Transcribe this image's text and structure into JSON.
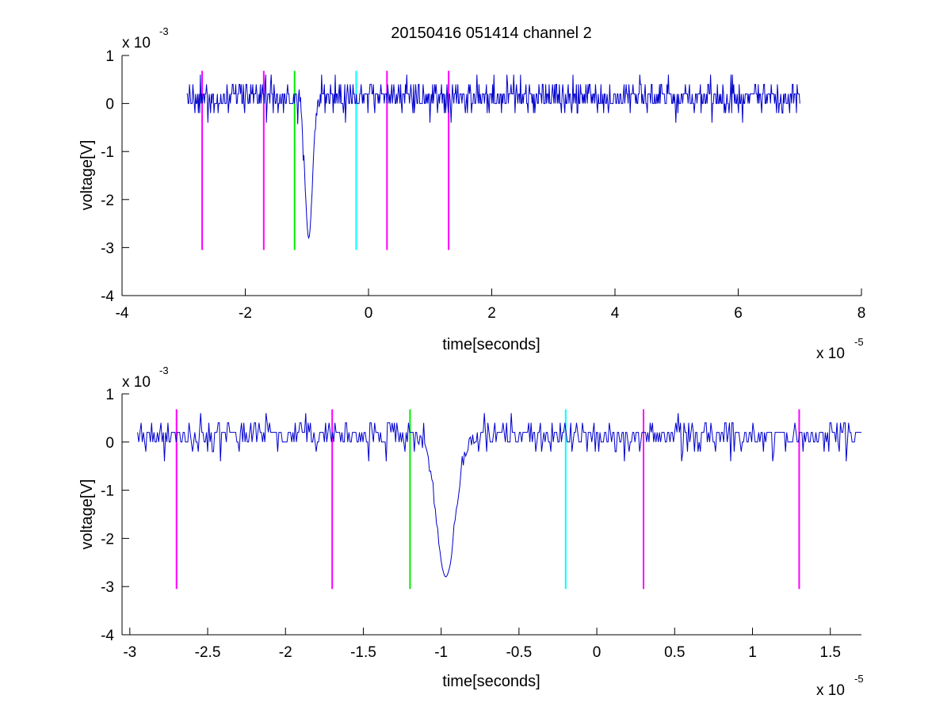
{
  "chart_data": [
    {
      "type": "line",
      "title": "20150416 051414 channel 2",
      "xlabel": "time[seconds]",
      "ylabel": "voltage[V]",
      "x_multiplier": {
        "base": "x 10",
        "power": "-5"
      },
      "y_multiplier": {
        "base": "x 10",
        "power": "-3"
      },
      "xlim": [
        -4,
        8
      ],
      "ylim": [
        -4,
        1
      ],
      "x_ticks": [
        -4,
        -2,
        0,
        2,
        4,
        6,
        8
      ],
      "x_tick_labels": [
        "-4",
        "-2",
        "0",
        "2",
        "4",
        "6",
        "8"
      ],
      "y_ticks": [
        1,
        0,
        -1,
        -2,
        -3,
        -4
      ],
      "y_tick_labels": [
        "1",
        "0",
        "-1",
        "-2",
        "-3",
        "-4"
      ],
      "grid": false,
      "signal": {
        "color": "#0000cc",
        "x_range": [
          -2.95,
          7.0
        ],
        "baseline": 0.08,
        "spike": {
          "x": -0.97,
          "min": -2.8
        }
      },
      "markers": [
        {
          "x": -2.7,
          "color": "#ff00ff",
          "top": 0.68,
          "bottom": -3.05
        },
        {
          "x": -1.7,
          "color": "#ff00ff",
          "top": 0.68,
          "bottom": -3.05
        },
        {
          "x": -1.2,
          "color": "#00ee00",
          "top": 0.68,
          "bottom": -3.05
        },
        {
          "x": -0.2,
          "color": "#00ffff",
          "top": 0.68,
          "bottom": -3.05
        },
        {
          "x": 0.3,
          "color": "#ff00ff",
          "top": 0.68,
          "bottom": -3.05
        },
        {
          "x": 1.3,
          "color": "#ff00ff",
          "top": 0.68,
          "bottom": -3.05
        }
      ]
    },
    {
      "type": "line",
      "title": "",
      "xlabel": "time[seconds]",
      "ylabel": "voltage[V]",
      "x_multiplier": {
        "base": "x 10",
        "power": "-5"
      },
      "y_multiplier": {
        "base": "x 10",
        "power": "-3"
      },
      "xlim": [
        -3.05,
        1.7
      ],
      "ylim": [
        -4,
        1
      ],
      "x_ticks": [
        -3,
        -2.5,
        -2,
        -1.5,
        -1,
        -0.5,
        0,
        0.5,
        1,
        1.5
      ],
      "x_tick_labels": [
        "-3",
        "-2.5",
        "-2",
        "-1.5",
        "-1",
        "-0.5",
        "0",
        "0.5",
        "1",
        "1.5"
      ],
      "y_ticks": [
        1,
        0,
        -1,
        -2,
        -3,
        -4
      ],
      "y_tick_labels": [
        "1",
        "0",
        "-1",
        "-2",
        "-3",
        "-4"
      ],
      "grid": false,
      "signal": {
        "color": "#0000cc",
        "x_range": [
          -2.95,
          1.7
        ],
        "baseline": 0.08,
        "spike": {
          "x": -0.97,
          "min": -2.8
        }
      },
      "markers": [
        {
          "x": -2.7,
          "color": "#ff00ff",
          "top": 0.68,
          "bottom": -3.05
        },
        {
          "x": -1.7,
          "color": "#ff00ff",
          "top": 0.68,
          "bottom": -3.05
        },
        {
          "x": -1.2,
          "color": "#00ee00",
          "top": 0.68,
          "bottom": -3.05
        },
        {
          "x": -0.2,
          "color": "#00ffff",
          "top": 0.68,
          "bottom": -3.05
        },
        {
          "x": 0.3,
          "color": "#ff00ff",
          "top": 0.68,
          "bottom": -3.05
        },
        {
          "x": 1.3,
          "color": "#ff00ff",
          "top": 0.68,
          "bottom": -3.05
        }
      ]
    }
  ]
}
